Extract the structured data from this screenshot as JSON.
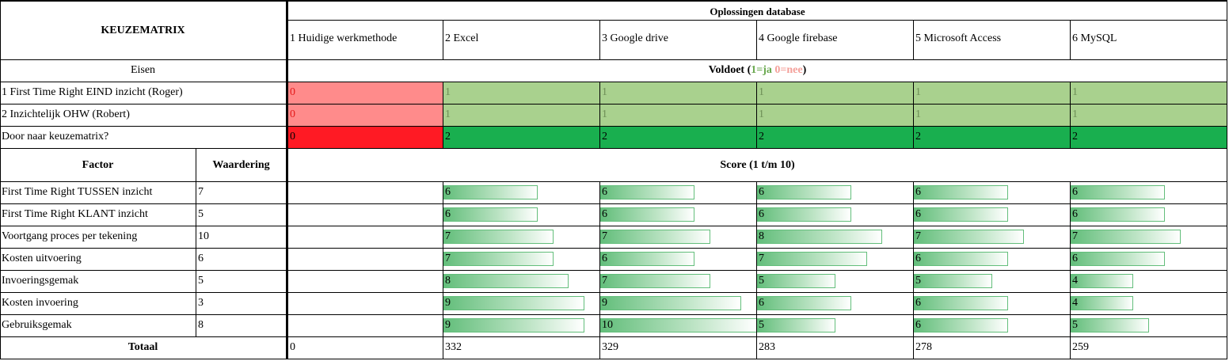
{
  "title": "KEUZEMATRIX",
  "solutions_header": "Oplossingen database",
  "solutions": [
    "1 Huidige werkmethode",
    "2 Excel",
    "3 Google drive",
    "4 Google firebase",
    "5 Microsoft Access",
    "6 MySQL"
  ],
  "eisen_label": "Eisen",
  "voldoet": {
    "prefix": "Voldoet (",
    "ja": "1=ja",
    "space": " ",
    "nee": "0=nee",
    "suffix": ")"
  },
  "requirements": [
    {
      "label": "1 First Time Right EIND inzicht (Roger)",
      "values": [
        "0",
        "1",
        "1",
        "1",
        "1",
        "1"
      ]
    },
    {
      "label": "2 Inzichtelijk OHW (Robert)",
      "values": [
        "0",
        "1",
        "1",
        "1",
        "1",
        "1"
      ]
    }
  ],
  "door": {
    "label": "Door naar keuzematrix?",
    "values": [
      "0",
      "2",
      "2",
      "2",
      "2",
      "2"
    ]
  },
  "factor_header": "Factor",
  "waardering_header": "Waardering",
  "score_header": "Score (1 t/m 10)",
  "factors": [
    {
      "name": "First Time Right TUSSEN inzicht",
      "waardering": "7",
      "scores": [
        6,
        6,
        6,
        6,
        6
      ]
    },
    {
      "name": "First Time Right KLANT inzicht",
      "waardering": "5",
      "scores": [
        6,
        6,
        6,
        6,
        6
      ]
    },
    {
      "name": "Voortgang proces per tekening",
      "waardering": "10",
      "scores": [
        7,
        7,
        8,
        7,
        7
      ]
    },
    {
      "name": "Kosten uitvoering",
      "waardering": "6",
      "scores": [
        7,
        6,
        7,
        6,
        6
      ]
    },
    {
      "name": "Invoeringsgemak",
      "waardering": "5",
      "scores": [
        8,
        7,
        5,
        5,
        4
      ]
    },
    {
      "name": "Kosten invoering",
      "waardering": "3",
      "scores": [
        9,
        9,
        6,
        6,
        4
      ]
    },
    {
      "name": "Gebruiksgemak",
      "waardering": "8",
      "scores": [
        9,
        10,
        5,
        6,
        5
      ]
    }
  ],
  "totaal_label": "Totaal",
  "totals": [
    "0",
    "332",
    "329",
    "283",
    "278",
    "259"
  ],
  "colors": {
    "red_light": "#ff8b8b",
    "green_light": "#a9d18e",
    "red_strong": "#ff1a24",
    "green_strong": "#19af4f",
    "bar_green": "#63be7b"
  }
}
